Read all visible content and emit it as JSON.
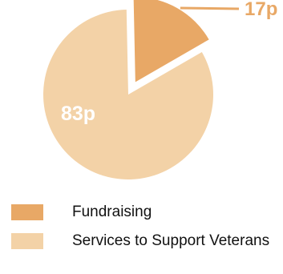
{
  "chart_data": {
    "type": "pie",
    "unit": "p",
    "slices": [
      {
        "name": "Fundraising",
        "value": 17,
        "label": "17p",
        "color": "#E8A866",
        "exploded": true
      },
      {
        "name": "Services to Support Veterans",
        "value": 83,
        "label": "83p",
        "color": "#F3D2A7",
        "exploded": false
      }
    ],
    "legend": {
      "position": "bottom",
      "items": [
        {
          "label": "Fundraising",
          "color": "#E8A866"
        },
        {
          "label": "Services to Support Veterans",
          "color": "#F3D2A7"
        }
      ]
    },
    "colors": {
      "outside_label": "#E8A866",
      "inside_label": "#ffffff",
      "leader_line": "#E8A866"
    }
  }
}
